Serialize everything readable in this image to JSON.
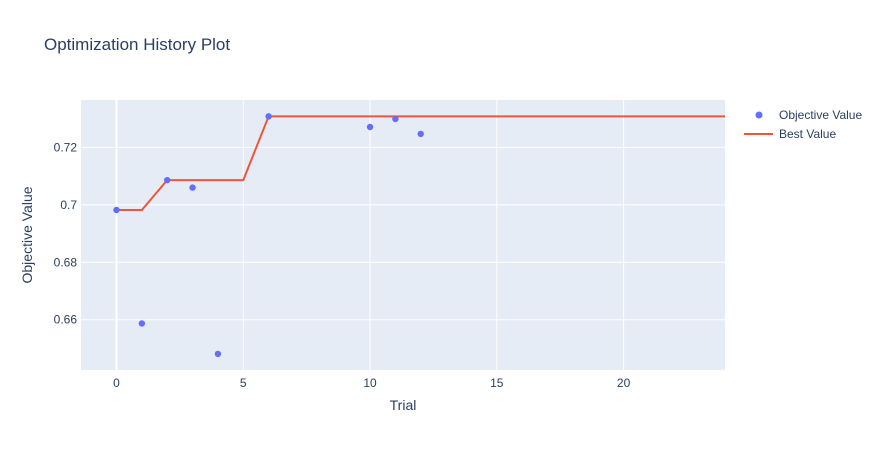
{
  "chart_data": {
    "type": "scatter",
    "title": "Optimization History Plot",
    "xlabel": "Trial",
    "ylabel": "Objective Value",
    "xlim": [
      -1.4,
      24
    ],
    "ylim": [
      0.6425,
      0.7365
    ],
    "xticks": [
      0,
      5,
      10,
      15,
      20
    ],
    "yticks": [
      0.66,
      0.68,
      0.7,
      0.72
    ],
    "ytick_labels": [
      "0.66",
      "0.68",
      "0.7",
      "0.72"
    ],
    "grid": true,
    "legend_position": "top-right",
    "series": [
      {
        "name": "Objective Value",
        "mode": "markers",
        "color": "#636efa",
        "x": [
          0,
          1,
          2,
          3,
          4,
          6,
          10,
          11,
          12
        ],
        "y": [
          0.6982,
          0.6587,
          0.7086,
          0.706,
          0.6481,
          0.7308,
          0.7271,
          0.7299,
          0.7247
        ]
      },
      {
        "name": "Best Value",
        "mode": "line",
        "color": "#ef553b",
        "x": [
          0,
          1,
          2,
          3,
          4,
          5,
          6,
          7,
          8,
          9,
          10,
          11,
          12,
          13,
          14,
          15,
          16,
          17,
          18,
          19,
          20,
          21,
          22,
          23,
          24
        ],
        "y": [
          0.6982,
          0.6982,
          0.7086,
          0.7086,
          0.7086,
          0.7086,
          0.7308,
          0.7308,
          0.7308,
          0.7308,
          0.7308,
          0.7308,
          0.7308,
          0.7308,
          0.7308,
          0.7308,
          0.7308,
          0.7308,
          0.7308,
          0.7308,
          0.7308,
          0.7308,
          0.7308,
          0.7308,
          0.7308
        ]
      }
    ]
  }
}
